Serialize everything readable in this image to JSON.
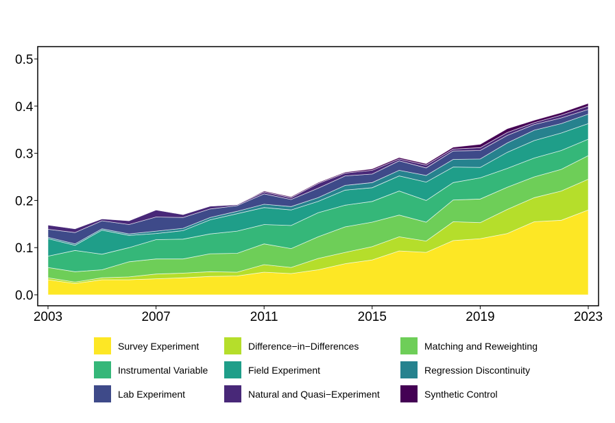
{
  "chart_data": {
    "type": "area",
    "stacked": true,
    "title": "",
    "xlabel": "",
    "ylabel": "",
    "xlim": [
      2003,
      2023
    ],
    "ylim": [
      0,
      0.52
    ],
    "xticks": [
      "2003",
      "2007",
      "2011",
      "2015",
      "2019",
      "2023"
    ],
    "yticks": [
      "0.0",
      "0.1",
      "0.2",
      "0.3",
      "0.4",
      "0.5"
    ],
    "grid": false,
    "legend_position": "bottom",
    "x": [
      2003,
      2004,
      2005,
      2006,
      2007,
      2008,
      2009,
      2010,
      2011,
      2012,
      2013,
      2014,
      2015,
      2016,
      2017,
      2018,
      2019,
      2020,
      2021,
      2022,
      2023
    ],
    "series": [
      {
        "name": "Survey Experiment",
        "color": "#FDE725",
        "values": [
          0.032,
          0.024,
          0.032,
          0.032,
          0.034,
          0.036,
          0.039,
          0.04,
          0.048,
          0.045,
          0.053,
          0.066,
          0.074,
          0.093,
          0.09,
          0.115,
          0.119,
          0.13,
          0.155,
          0.158,
          0.18
        ]
      },
      {
        "name": "Difference−in−Differences",
        "color": "#B5DE2B",
        "values": [
          0.004,
          0.003,
          0.004,
          0.006,
          0.01,
          0.01,
          0.01,
          0.008,
          0.016,
          0.013,
          0.024,
          0.024,
          0.028,
          0.03,
          0.024,
          0.04,
          0.034,
          0.051,
          0.051,
          0.062,
          0.065
        ]
      },
      {
        "name": "Matching and Reweighting",
        "color": "#6ECE58",
        "values": [
          0.022,
          0.022,
          0.017,
          0.032,
          0.032,
          0.03,
          0.038,
          0.04,
          0.044,
          0.04,
          0.046,
          0.054,
          0.052,
          0.046,
          0.04,
          0.046,
          0.05,
          0.047,
          0.044,
          0.046,
          0.05
        ]
      },
      {
        "name": "Instrumental Variable",
        "color": "#35B779",
        "values": [
          0.024,
          0.045,
          0.033,
          0.03,
          0.041,
          0.042,
          0.042,
          0.047,
          0.041,
          0.049,
          0.051,
          0.046,
          0.044,
          0.051,
          0.046,
          0.037,
          0.045,
          0.04,
          0.04,
          0.04,
          0.035
        ]
      },
      {
        "name": "Field Experiment",
        "color": "#1F9E89",
        "values": [
          0.037,
          0.011,
          0.051,
          0.026,
          0.013,
          0.018,
          0.03,
          0.037,
          0.036,
          0.033,
          0.024,
          0.032,
          0.029,
          0.032,
          0.039,
          0.033,
          0.022,
          0.034,
          0.037,
          0.037,
          0.033
        ]
      },
      {
        "name": "Regression Discontinuity",
        "color": "#26828E",
        "values": [
          0.003,
          0.003,
          0.003,
          0.003,
          0.005,
          0.005,
          0.005,
          0.005,
          0.007,
          0.007,
          0.008,
          0.01,
          0.011,
          0.012,
          0.014,
          0.016,
          0.018,
          0.02,
          0.022,
          0.02,
          0.02
        ]
      },
      {
        "name": "Lab Experiment",
        "color": "#3E4A89",
        "values": [
          0.017,
          0.024,
          0.017,
          0.02,
          0.03,
          0.023,
          0.018,
          0.012,
          0.022,
          0.015,
          0.02,
          0.02,
          0.018,
          0.02,
          0.016,
          0.018,
          0.018,
          0.016,
          0.012,
          0.012,
          0.01
        ]
      },
      {
        "name": "Natural and Quasi−Experiment",
        "color": "#482878",
        "values": [
          0.009,
          0.008,
          0.004,
          0.008,
          0.015,
          0.006,
          0.006,
          0.002,
          0.004,
          0.004,
          0.01,
          0.006,
          0.008,
          0.004,
          0.006,
          0.004,
          0.006,
          0.006,
          0.004,
          0.006,
          0.007
        ]
      },
      {
        "name": "Synthetic Control",
        "color": "#440154",
        "values": [
          0.0,
          0.0,
          0.0,
          0.0,
          0.0,
          0.0,
          0.0,
          0.0,
          0.002,
          0.002,
          0.002,
          0.002,
          0.003,
          0.003,
          0.003,
          0.004,
          0.007,
          0.008,
          0.005,
          0.005,
          0.006
        ]
      }
    ]
  }
}
